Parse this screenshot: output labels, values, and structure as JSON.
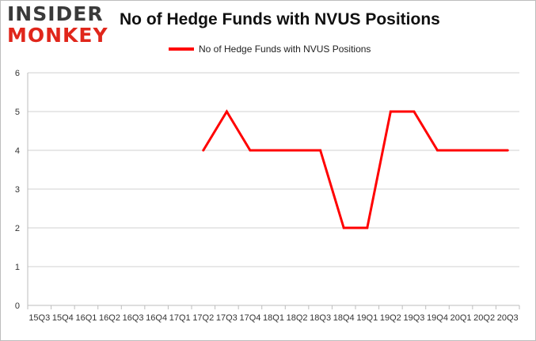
{
  "brand": {
    "line1": "INSIDER",
    "line2": "MONKEY"
  },
  "colors": {
    "series": "#ff0000",
    "grid": "#d0d0d0",
    "logo_red": "#e0261b",
    "logo_dark": "#3a3a3a"
  },
  "chart_data": {
    "type": "line",
    "title": "No of Hedge Funds with NVUS Positions",
    "xlabel": "",
    "ylabel": "",
    "ylim": [
      0,
      6
    ],
    "yticks": [
      0,
      1,
      2,
      3,
      4,
      5,
      6
    ],
    "grid": true,
    "legend_position": "top-center",
    "categories": [
      "15Q3",
      "15Q4",
      "16Q1",
      "16Q2",
      "16Q3",
      "16Q4",
      "17Q1",
      "17Q2",
      "17Q3",
      "17Q4",
      "18Q1",
      "18Q2",
      "18Q3",
      "18Q4",
      "19Q1",
      "19Q2",
      "19Q3",
      "19Q4",
      "20Q1",
      "20Q2",
      "20Q3"
    ],
    "series": [
      {
        "name": "No of Hedge Funds with NVUS Positions",
        "values": [
          null,
          null,
          null,
          null,
          null,
          null,
          null,
          4,
          5,
          4,
          4,
          4,
          4,
          2,
          2,
          5,
          5,
          4,
          4,
          4,
          4
        ]
      }
    ]
  }
}
